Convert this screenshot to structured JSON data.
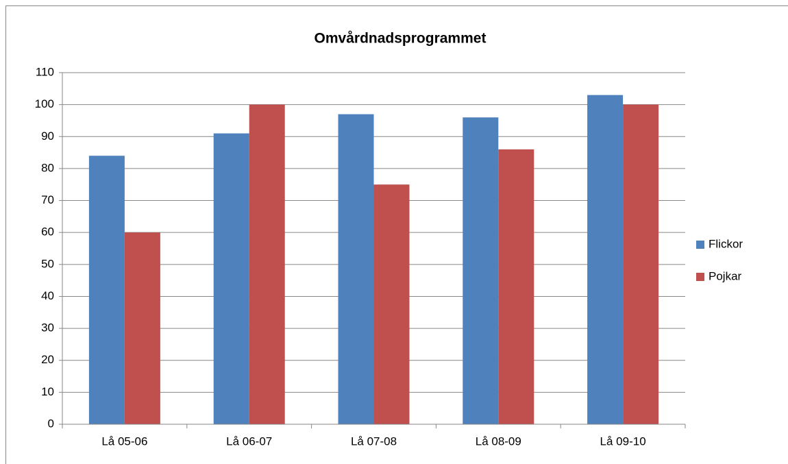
{
  "chart_data": {
    "type": "bar",
    "title": "Omvårdnadsprogrammet",
    "categories": [
      "Lå 05-06",
      "Lå 06-07",
      "Lå 07-08",
      "Lå 08-09",
      "Lå 09-10"
    ],
    "series": [
      {
        "name": "Flickor",
        "color": "#4f81bd",
        "values": [
          84,
          91,
          97,
          96,
          103
        ]
      },
      {
        "name": "Pojkar",
        "color": "#c0504d",
        "values": [
          60,
          100,
          75,
          86,
          100
        ]
      }
    ],
    "ylim": [
      0,
      110
    ],
    "yticks": [
      0,
      10,
      20,
      30,
      40,
      50,
      60,
      70,
      80,
      90,
      100,
      110
    ],
    "grid": true,
    "legend": "right"
  }
}
